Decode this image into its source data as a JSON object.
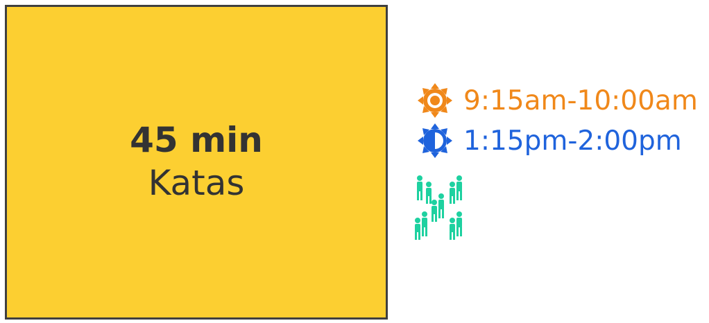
{
  "card": {
    "duration": "45 min",
    "activity": "Katas",
    "background_color": "#fccf31",
    "text_color": "#333333"
  },
  "schedule": [
    {
      "icon": "sun-icon",
      "time": "9:15am-10:00am",
      "color": "#f0881a"
    },
    {
      "icon": "half-sun-icon",
      "time": "1:15pm-2:00pm",
      "color": "#1f63dc"
    }
  ],
  "participants": {
    "icon": "group-icon",
    "color": "#1ed1a0"
  }
}
